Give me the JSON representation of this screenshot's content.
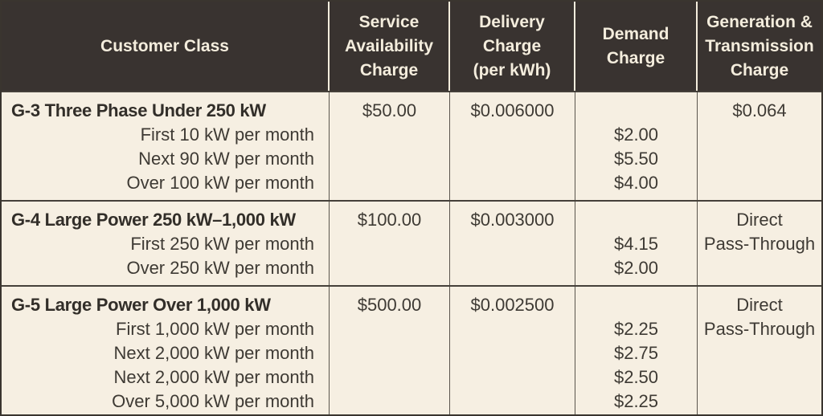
{
  "colors": {
    "header_bg": "#393330",
    "header_text": "#f4eddd",
    "body_bg": "#f6efe2",
    "body_text": "#3e3a34",
    "grid_line": "#5a554d",
    "row_separator": "#45403a"
  },
  "header": {
    "customer_class": "Customer Class",
    "service_availability": [
      "Service",
      "Availability",
      "Charge"
    ],
    "delivery": [
      "Delivery",
      "Charge",
      "(per kWh)"
    ],
    "demand": [
      "Demand",
      "Charge"
    ],
    "generation_transmission": [
      "Generation &",
      "Transmission",
      "Charge"
    ]
  },
  "rows": [
    {
      "class_title": "G-3 Three Phase Under 250 kW",
      "tiers": [
        "First 10 kW per month",
        "Next 90 kW per month",
        "Over 100 kW per month"
      ],
      "service_charge": "$50.00",
      "delivery_charge": "$0.006000",
      "demand_charges": [
        "$2.00",
        "$5.50",
        "$4.00"
      ],
      "generation_charge_lines": [
        "$0.064"
      ]
    },
    {
      "class_title": "G-4 Large Power 250 kW–1,000 kW",
      "tiers": [
        "First 250 kW per month",
        "Over 250 kW per month"
      ],
      "service_charge": "$100.00",
      "delivery_charge": "$0.003000",
      "demand_charges": [
        "$4.15",
        "$2.00"
      ],
      "generation_charge_lines": [
        "Direct",
        "Pass-Through"
      ]
    },
    {
      "class_title": "G-5 Large Power Over 1,000 kW",
      "tiers": [
        "First 1,000 kW per month",
        "Next 2,000 kW per month",
        "Next 2,000 kW per month",
        "Over 5,000 kW per month"
      ],
      "service_charge": "$500.00",
      "delivery_charge": "$0.002500",
      "demand_charges": [
        "$2.25",
        "$2.75",
        "$2.50",
        "$2.25"
      ],
      "generation_charge_lines": [
        "Direct",
        "Pass-Through"
      ]
    }
  ]
}
